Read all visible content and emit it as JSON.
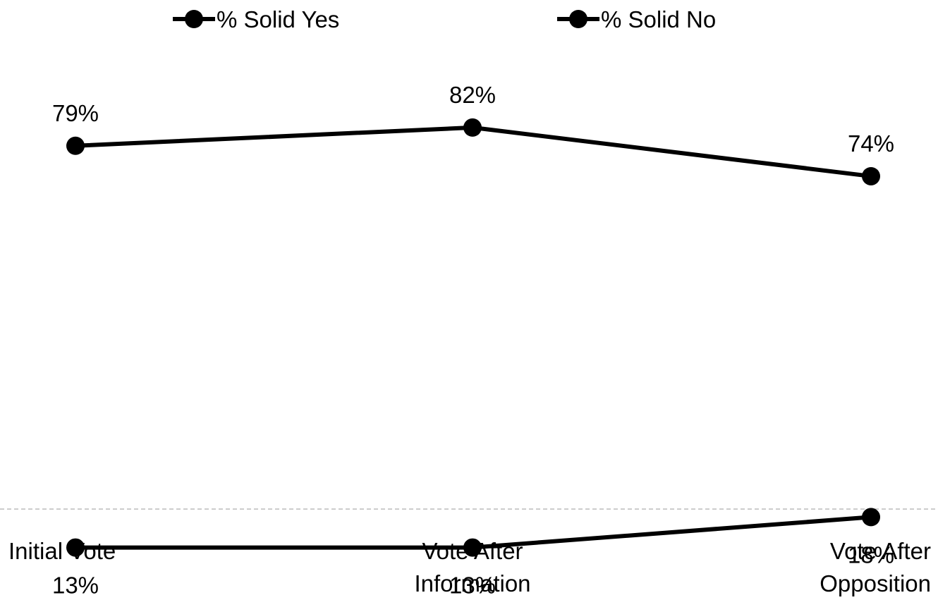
{
  "chart_data": {
    "type": "line",
    "categories": [
      "Initial Vote",
      "Vote After Information",
      "Vote After Opposition"
    ],
    "category_lines": [
      [
        "Initial Vote"
      ],
      [
        "Vote After",
        "Information"
      ],
      [
        "Vote After",
        "Opposition"
      ]
    ],
    "series": [
      {
        "name": "% Solid Yes",
        "values": [
          79,
          82,
          74
        ],
        "labels": [
          "79%",
          "82%",
          "74%"
        ],
        "label_position": "above"
      },
      {
        "name": "% Solid No",
        "values": [
          13,
          13,
          18
        ],
        "labels": [
          "13%",
          "13%",
          "18%"
        ],
        "label_position": "below"
      }
    ],
    "ylim": [
      0,
      90
    ],
    "legend": "top",
    "grid": false,
    "colors": {
      "line": "#000000",
      "marker": "#000000",
      "axis": "#bbbbbb"
    }
  }
}
